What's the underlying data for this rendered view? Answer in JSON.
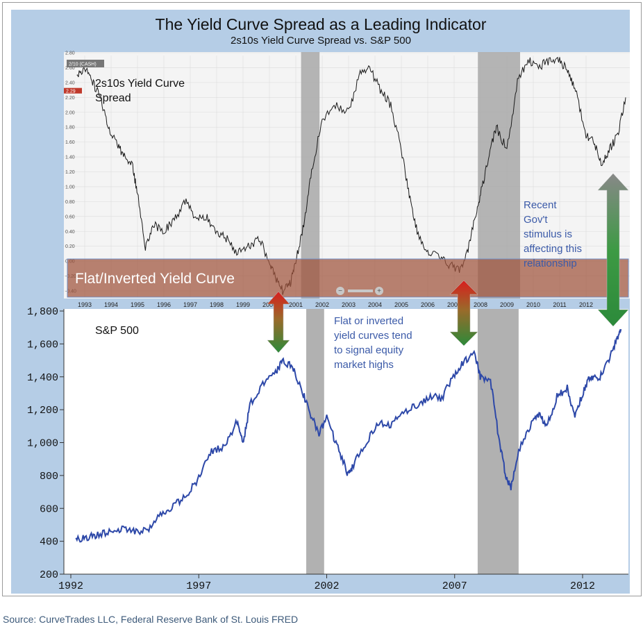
{
  "title": "The Yield Curve Spread as a Leading Indicator",
  "subtitle": "2s10s Yield Curve Spread vs. S&P 500",
  "source": "Source: CurveTrades LLC, Federal Reserve Bank of St. Louis FRED",
  "colors": {
    "band": "#b5cde6",
    "spread_line": "#1a1a1a",
    "sp_line": "#2d48a8",
    "recession": "#a8a8a8",
    "flat_zone": "#a0533b",
    "annotation": "#3b5aa8"
  },
  "annotations": {
    "flat_zone_label": "Flat/Inverted Yield Curve",
    "flat_signal": [
      "Flat or inverted",
      "yield curves tend",
      "to signal equity",
      "market highs"
    ],
    "stimulus": [
      "Recent",
      "Gov't",
      "stimulus is",
      "affecting this",
      "relationship"
    ],
    "series_tag": "2/10 (CASH)",
    "current_value_tag": "2.29"
  },
  "chart_data": [
    {
      "type": "line",
      "title": "2s10s Yield Curve Spread",
      "series_label_lines": [
        "2s10s Yield Curve",
        "Spread"
      ],
      "ylim": [
        -0.5,
        2.8
      ],
      "yticks": [
        "2.80",
        "2.60",
        "2.40",
        "2.20",
        "2.00",
        "1.80",
        "1.60",
        "1.40",
        "1.20",
        "1.00",
        "0.80",
        "0.60",
        "0.40",
        "0.20",
        "0.00",
        "-0.20",
        "-0.40"
      ],
      "xticks": [
        "1993",
        "1994",
        "1995",
        "1996",
        "1997",
        "1998",
        "1999",
        "2000",
        "2001",
        "2002",
        "2003",
        "2004",
        "2005",
        "2006",
        "2007",
        "2008",
        "2009",
        "2010",
        "2011",
        "2012"
      ],
      "xlim": [
        1992.5,
        2013.6
      ],
      "x": [
        1992.7,
        1993.0,
        1993.3,
        1993.6,
        1993.9,
        1994.2,
        1994.5,
        1994.8,
        1995.0,
        1995.3,
        1995.6,
        1996.0,
        1996.4,
        1996.8,
        1997.2,
        1997.6,
        1998.0,
        1998.4,
        1998.8,
        1999.2,
        1999.6,
        2000.0,
        2000.2,
        2000.5,
        2000.8,
        2001.0,
        2001.3,
        2001.6,
        2002.0,
        2002.5,
        2003.0,
        2003.4,
        2003.8,
        2004.2,
        2004.6,
        2005.0,
        2005.3,
        2005.6,
        2006.0,
        2006.4,
        2006.8,
        2007.2,
        2007.5,
        2007.8,
        2008.0,
        2008.3,
        2008.6,
        2009.0,
        2009.4,
        2009.8,
        2010.2,
        2010.6,
        2011.0,
        2011.3,
        2011.6,
        2012.0,
        2012.3,
        2012.6,
        2012.9,
        2013.2,
        2013.5
      ],
      "y": [
        2.5,
        2.6,
        2.4,
        2.2,
        1.8,
        1.6,
        1.4,
        1.3,
        0.9,
        0.2,
        0.5,
        0.4,
        0.55,
        0.8,
        0.6,
        0.6,
        0.4,
        0.3,
        0.1,
        0.2,
        0.3,
        0.0,
        -0.2,
        -0.4,
        -0.3,
        0.0,
        0.5,
        1.2,
        1.9,
        2.1,
        2.0,
        2.5,
        2.6,
        2.3,
        2.1,
        1.5,
        0.9,
        0.4,
        0.1,
        0.1,
        -0.05,
        -0.1,
        0.1,
        0.6,
        0.9,
        1.4,
        1.8,
        1.5,
        2.4,
        2.7,
        2.6,
        2.7,
        2.7,
        2.55,
        2.3,
        1.7,
        1.6,
        1.3,
        1.5,
        1.7,
        2.2
      ]
    },
    {
      "type": "line",
      "title": "S&P 500",
      "ylim": [
        200,
        1800
      ],
      "yticks": [
        "1,800",
        "1,600",
        "1,400",
        "1,200",
        "1,000",
        "800",
        "600",
        "400",
        "200"
      ],
      "xticks": [
        "1992",
        "1997",
        "2002",
        "2007",
        "2012"
      ],
      "xlim": [
        1992,
        2013.6
      ],
      "x": [
        1992.2,
        1992.6,
        1993.0,
        1993.5,
        1994.0,
        1994.5,
        1995.0,
        1995.5,
        1996.0,
        1996.5,
        1997.0,
        1997.5,
        1998.0,
        1998.5,
        1998.75,
        1999.0,
        1999.5,
        2000.0,
        2000.3,
        2000.7,
        2001.0,
        2001.3,
        2001.7,
        2002.0,
        2002.4,
        2002.8,
        2003.0,
        2003.5,
        2004.0,
        2004.5,
        2005.0,
        2005.5,
        2006.0,
        2006.5,
        2007.0,
        2007.4,
        2007.8,
        2008.0,
        2008.4,
        2008.75,
        2009.0,
        2009.2,
        2009.5,
        2010.0,
        2010.3,
        2010.6,
        2011.0,
        2011.4,
        2011.7,
        2012.0,
        2012.3,
        2012.6,
        2013.0,
        2013.3,
        2013.5
      ],
      "y": [
        410,
        420,
        440,
        455,
        470,
        455,
        470,
        560,
        610,
        680,
        780,
        950,
        970,
        1130,
        1000,
        1230,
        1350,
        1420,
        1500,
        1450,
        1330,
        1200,
        1050,
        1150,
        980,
        820,
        850,
        990,
        1120,
        1110,
        1190,
        1220,
        1280,
        1270,
        1420,
        1500,
        1540,
        1400,
        1380,
        1000,
        800,
        720,
        950,
        1110,
        1180,
        1100,
        1280,
        1330,
        1160,
        1300,
        1400,
        1380,
        1490,
        1620,
        1690
      ]
    }
  ],
  "recessions": [
    [
      2001.2,
      2001.9
    ],
    [
      2007.9,
      2009.5
    ]
  ]
}
